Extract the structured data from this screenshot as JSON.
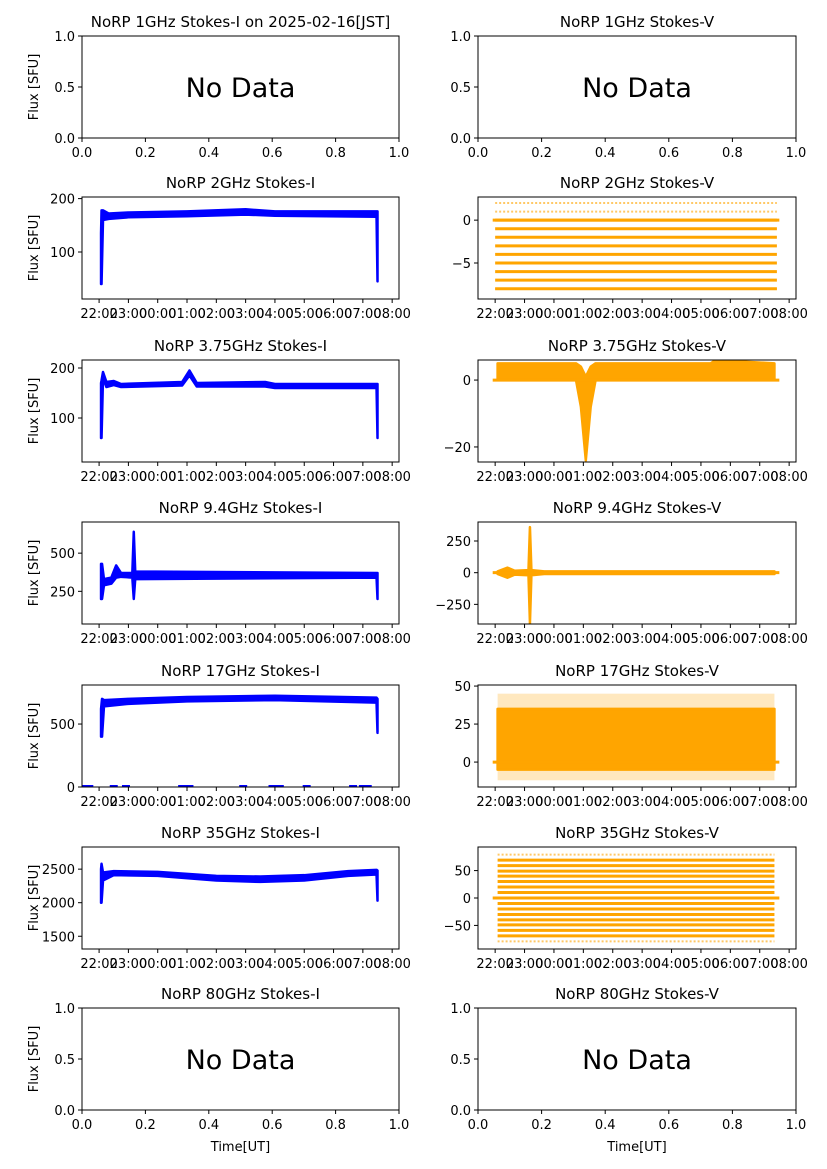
{
  "chart_data": [
    {
      "type": "scatter",
      "title": "NoRP 1GHz Stokes-I on 2025-02-16[JST]",
      "ylabel": "Flux [SFU]",
      "xlabel": "",
      "nodata": true,
      "annotation": "No Data",
      "xlim": [
        0,
        1
      ],
      "ylim": [
        0,
        1
      ],
      "xticks": [
        "0.0",
        "0.2",
        "0.4",
        "0.6",
        "0.8",
        "1.0"
      ],
      "yticks": [
        "0.0",
        "0.5",
        "1.0"
      ]
    },
    {
      "type": "scatter",
      "title": "NoRP 1GHz Stokes-V",
      "ylabel": "",
      "xlabel": "",
      "nodata": true,
      "annotation": "No Data",
      "xlim": [
        0,
        1
      ],
      "ylim": [
        0,
        1
      ],
      "xticks": [
        "0.0",
        "0.2",
        "0.4",
        "0.6",
        "0.8",
        "1.0"
      ],
      "yticks": [
        "0.0",
        "0.5",
        "1.0"
      ]
    },
    {
      "type": "scatter",
      "title": "NoRP 2GHz Stokes-I",
      "ylabel": "Flux [SFU]",
      "xlabel": "",
      "color": "#0000ff",
      "xlim": [
        "21:25",
        "08:14"
      ],
      "ylim": [
        12,
        203
      ],
      "yticks": [
        100,
        200
      ],
      "envelope": [
        [
          "22:04",
          40,
          135
        ],
        [
          "22:05",
          40,
          178
        ],
        [
          "22:08",
          160,
          178
        ],
        [
          "22:20",
          162,
          172
        ],
        [
          "23:00",
          165,
          174
        ],
        [
          "01:00",
          167,
          176
        ],
        [
          "03:00",
          170,
          180
        ],
        [
          "04:00",
          168,
          176
        ],
        [
          "07:28",
          166,
          176
        ],
        [
          "07:30",
          45,
          176
        ]
      ]
    },
    {
      "type": "scatter",
      "title": "NoRP 2GHz Stokes-V",
      "ylabel": "",
      "xlabel": "",
      "color": "#ffa500",
      "xlim": [
        "21:25",
        "08:14"
      ],
      "ylim": [
        -9.2,
        2.7
      ],
      "yticks": [
        -5,
        0
      ],
      "range": [
        "22:00",
        "07:35"
      ],
      "baseline": [
        "21:55",
        "07:40"
      ],
      "levels": [
        -8,
        -7,
        -6,
        -5,
        -4,
        -3,
        -2,
        -1,
        0
      ],
      "sparse_levels": [
        -8,
        1,
        2
      ]
    },
    {
      "type": "scatter",
      "title": "NoRP 3.75GHz Stokes-I",
      "ylabel": "Flux [SFU]",
      "xlabel": "",
      "color": "#0000ff",
      "xlim": [
        "21:25",
        "08:14"
      ],
      "ylim": [
        12,
        216
      ],
      "yticks": [
        100,
        200
      ],
      "envelope": [
        [
          "22:04",
          60,
          170
        ],
        [
          "22:05",
          60,
          175
        ],
        [
          "22:08",
          180,
          192
        ],
        [
          "22:15",
          162,
          172
        ],
        [
          "22:30",
          166,
          174
        ],
        [
          "22:45",
          162,
          168
        ],
        [
          "00:50",
          165,
          172
        ],
        [
          "01:05",
          185,
          195
        ],
        [
          "01:20",
          163,
          170
        ],
        [
          "03:40",
          163,
          172
        ],
        [
          "04:00",
          160,
          168
        ],
        [
          "07:28",
          160,
          168
        ],
        [
          "07:30",
          60,
          168
        ]
      ]
    },
    {
      "type": "scatter",
      "title": "NoRP 3.75GHz Stokes-V",
      "ylabel": "",
      "xlabel": "",
      "color": "#ffa500",
      "xlim": [
        "21:25",
        "08:14"
      ],
      "ylim": [
        -24.5,
        6
      ],
      "yticks": [
        -20,
        0
      ],
      "baseline": [
        "21:55",
        "07:40"
      ],
      "envelope": [
        [
          "22:05",
          0,
          5
        ],
        [
          "00:45",
          0,
          5
        ],
        [
          "00:55",
          -8,
          4
        ],
        [
          "01:05",
          -24,
          1
        ],
        [
          "01:15",
          -8,
          4
        ],
        [
          "01:25",
          0,
          5
        ],
        [
          "05:20",
          0,
          5
        ],
        [
          "05:30",
          0,
          6
        ],
        [
          "07:30",
          0,
          5
        ]
      ]
    },
    {
      "type": "scatter",
      "title": "NoRP 9.4GHz Stokes-I",
      "ylabel": "Flux [SFU]",
      "xlabel": "",
      "color": "#0000ff",
      "xlim": [
        "21:25",
        "08:14"
      ],
      "ylim": [
        36,
        704
      ],
      "yticks": [
        250,
        500
      ],
      "envelope": [
        [
          "22:04",
          200,
          430
        ],
        [
          "22:06",
          200,
          430
        ],
        [
          "22:10",
          290,
          330
        ],
        [
          "22:25",
          300,
          340
        ],
        [
          "22:35",
          340,
          420
        ],
        [
          "22:45",
          345,
          370
        ],
        [
          "23:08",
          340,
          370
        ],
        [
          "23:11",
          200,
          640
        ],
        [
          "23:14",
          330,
          380
        ],
        [
          "07:28",
          340,
          370
        ],
        [
          "07:30",
          200,
          370
        ]
      ]
    },
    {
      "type": "scatter",
      "title": "NoRP 9.4GHz Stokes-V",
      "ylabel": "",
      "xlabel": "",
      "color": "#ffa500",
      "xlim": [
        "21:25",
        "08:14"
      ],
      "ylim": [
        -405,
        400
      ],
      "yticks": [
        -250,
        0,
        250
      ],
      "baseline": [
        "21:55",
        "07:40"
      ],
      "envelope": [
        [
          "22:05",
          -10,
          10
        ],
        [
          "22:25",
          -40,
          40
        ],
        [
          "22:40",
          -15,
          15
        ],
        [
          "23:08",
          -20,
          20
        ],
        [
          "23:11",
          -400,
          360
        ],
        [
          "23:14",
          -20,
          20
        ],
        [
          "23:40",
          -10,
          10
        ],
        [
          "07:30",
          -10,
          10
        ]
      ]
    },
    {
      "type": "scatter",
      "title": "NoRP 17GHz Stokes-I",
      "ylabel": "Flux [SFU]",
      "xlabel": "",
      "color": "#0000ff",
      "xlim": [
        "21:25",
        "08:14"
      ],
      "ylim": [
        0,
        810
      ],
      "yticks": [
        0,
        500
      ],
      "envelope": [
        [
          "22:04",
          400,
          620
        ],
        [
          "22:06",
          400,
          700
        ],
        [
          "22:10",
          640,
          690
        ],
        [
          "23:00",
          660,
          700
        ],
        [
          "01:00",
          680,
          715
        ],
        [
          "04:00",
          690,
          725
        ],
        [
          "07:28",
          670,
          710
        ],
        [
          "07:30",
          430,
          700
        ]
      ],
      "zero_points": [
        "21:30",
        "21:40",
        "22:30",
        "22:55",
        "00:50",
        "01:05",
        "02:55",
        "03:55",
        "04:10",
        "05:05",
        "06:40",
        "07:00",
        "07:10"
      ]
    },
    {
      "type": "scatter",
      "title": "NoRP 17GHz Stokes-V",
      "ylabel": "",
      "xlabel": "",
      "color": "#ffa500",
      "xlim": [
        "21:25",
        "08:14"
      ],
      "ylim": [
        -16.4,
        50.7
      ],
      "yticks": [
        0,
        25,
        50
      ],
      "baseline": [
        "21:55",
        "07:40"
      ],
      "envelope": [
        [
          "22:05",
          -5,
          35
        ],
        [
          "07:30",
          -5,
          35
        ]
      ],
      "outer": [
        -12,
        45
      ]
    },
    {
      "type": "scatter",
      "title": "NoRP 35GHz Stokes-I",
      "ylabel": "Flux [SFU]",
      "xlabel": "",
      "color": "#0000ff",
      "xlim": [
        "21:25",
        "08:14"
      ],
      "ylim": [
        1310,
        2830
      ],
      "yticks": [
        1500,
        2000,
        2500
      ],
      "envelope": [
        [
          "22:04",
          2000,
          2500
        ],
        [
          "22:05",
          2000,
          2580
        ],
        [
          "22:08",
          2330,
          2450
        ],
        [
          "22:30",
          2410,
          2470
        ],
        [
          "00:00",
          2400,
          2460
        ],
        [
          "02:00",
          2330,
          2400
        ],
        [
          "03:30",
          2310,
          2390
        ],
        [
          "05:00",
          2330,
          2410
        ],
        [
          "06:30",
          2400,
          2470
        ],
        [
          "07:28",
          2420,
          2490
        ],
        [
          "07:30",
          2030,
          2480
        ]
      ]
    },
    {
      "type": "scatter",
      "title": "NoRP 35GHz Stokes-V",
      "ylabel": "",
      "xlabel": "",
      "color": "#ffa500",
      "xlim": [
        "21:25",
        "08:14"
      ],
      "ylim": [
        -93,
        93
      ],
      "yticks": [
        -50,
        0,
        50
      ],
      "range": [
        "22:05",
        "07:30"
      ],
      "baseline": [
        "21:55",
        "07:40"
      ],
      "levels": [
        -69,
        -59,
        -49,
        -40,
        -30,
        -20,
        -10,
        0,
        10,
        20,
        30,
        40,
        49,
        59,
        69
      ],
      "sparse_levels": [
        -79,
        79
      ]
    },
    {
      "type": "scatter",
      "title": "NoRP 80GHz Stokes-I",
      "ylabel": "Flux [SFU]",
      "xlabel": "Time[UT]",
      "nodata": true,
      "annotation": "No Data",
      "xlim": [
        0,
        1
      ],
      "ylim": [
        0,
        1
      ],
      "xticks": [
        "0.0",
        "0.2",
        "0.4",
        "0.6",
        "0.8",
        "1.0"
      ],
      "yticks": [
        "0.0",
        "0.5",
        "1.0"
      ]
    },
    {
      "type": "scatter",
      "title": "NoRP 80GHz Stokes-V",
      "ylabel": "",
      "xlabel": "Time[UT]",
      "nodata": true,
      "annotation": "No Data",
      "xlim": [
        0,
        1
      ],
      "ylim": [
        0,
        1
      ],
      "xticks": [
        "0.0",
        "0.2",
        "0.4",
        "0.6",
        "0.8",
        "1.0"
      ],
      "yticks": [
        "0.0",
        "0.5",
        "1.0"
      ]
    }
  ],
  "time_ticks": [
    "22:00",
    "23:00",
    "00:00",
    "01:00",
    "02:00",
    "03:00",
    "04:00",
    "05:00",
    "06:00",
    "07:00",
    "08:00"
  ]
}
